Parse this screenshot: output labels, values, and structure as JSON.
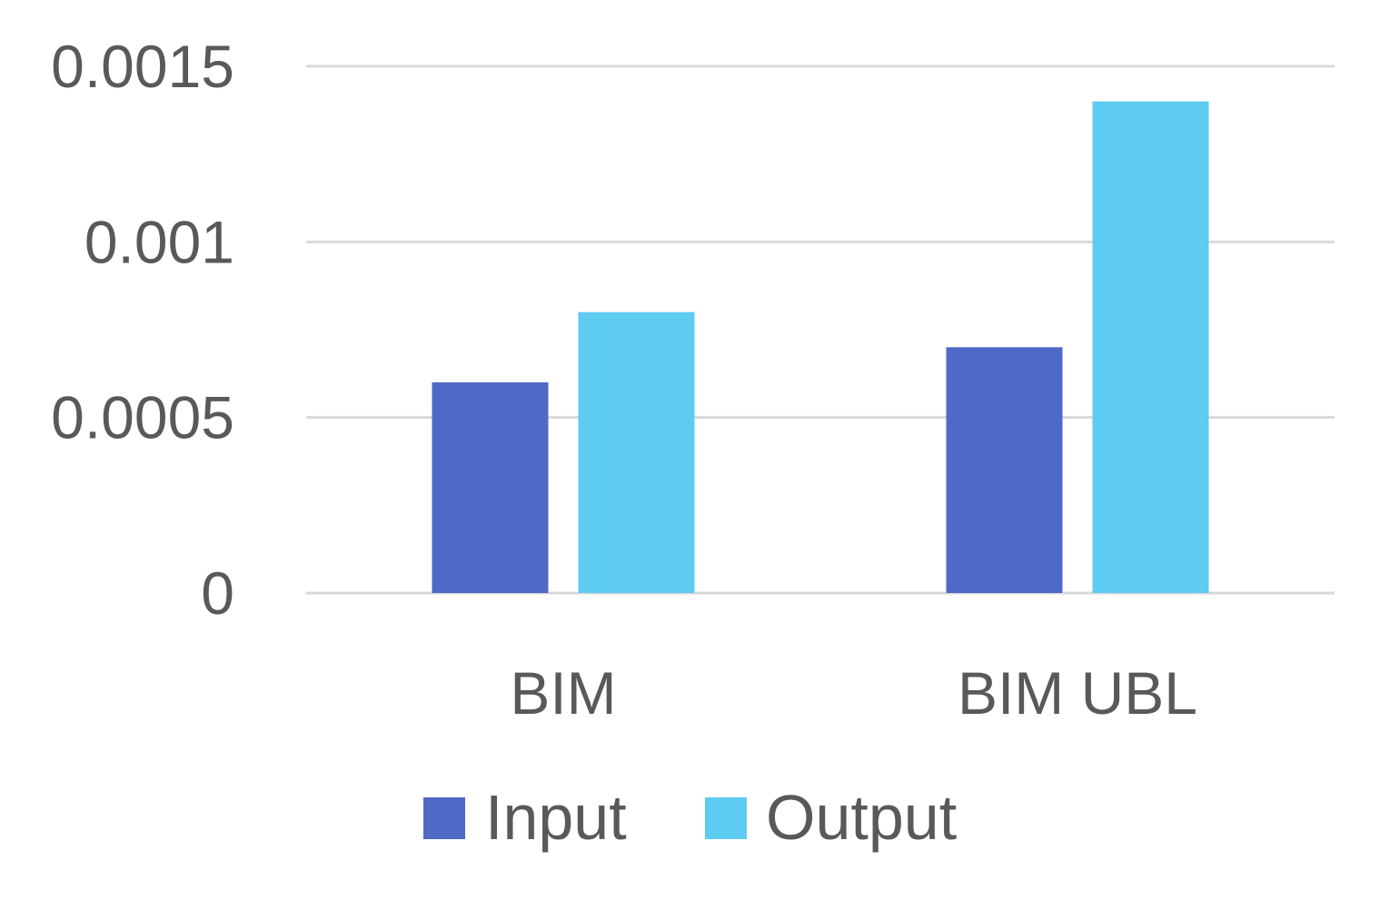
{
  "chart_data": {
    "type": "bar",
    "title": "",
    "xlabel": "",
    "ylabel": "",
    "categories": [
      "BIM",
      "BIM UBL"
    ],
    "series": [
      {
        "name": "Input",
        "color": "#4f69c6",
        "values": [
          0.0006,
          0.0007
        ]
      },
      {
        "name": "Output",
        "color": "#5ecbf1",
        "values": [
          0.0008,
          0.0014
        ]
      }
    ],
    "ylim": [
      0,
      0.0015
    ],
    "yticks": [
      "0",
      "0.0005",
      "0.001",
      "0.0015"
    ],
    "ytick_values": [
      0,
      0.0005,
      0.001,
      0.0015
    ],
    "grid": true,
    "legend": "bottom"
  }
}
